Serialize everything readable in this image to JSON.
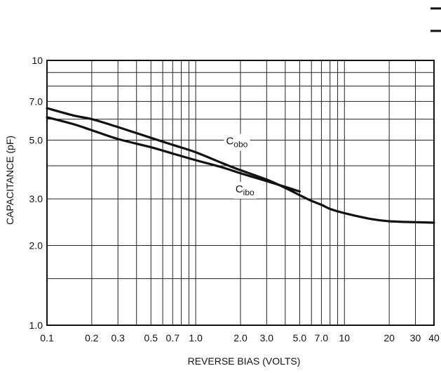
{
  "chart_data": {
    "type": "line",
    "title": "",
    "xlabel": "REVERSE BIAS (VOLTS)",
    "ylabel": "CAPACITANCE (pF)",
    "x_scale": "log",
    "y_scale": "log",
    "xlim": [
      0.1,
      40
    ],
    "ylim": [
      1.0,
      10
    ],
    "grid": true,
    "x_ticks": [
      0.1,
      0.2,
      0.3,
      0.5,
      0.7,
      1.0,
      2.0,
      3.0,
      5.0,
      7.0,
      10,
      20,
      30,
      40
    ],
    "x_tick_labels": [
      "0.1",
      "0.2",
      "0.3",
      "0.5",
      "0.7",
      "1.0",
      "2.0",
      "3.0",
      "5.0",
      "7.0",
      "10",
      "20",
      "30",
      "40"
    ],
    "y_ticks": [
      1.0,
      2.0,
      3.0,
      5.0,
      7.0,
      10
    ],
    "y_tick_labels": [
      "1.0",
      "2.0",
      "3.0",
      "5.0",
      "7.0",
      "10"
    ],
    "x_grid": [
      0.1,
      0.2,
      0.3,
      0.4,
      0.5,
      0.6,
      0.7,
      0.8,
      0.9,
      1,
      2,
      3,
      4,
      5,
      6,
      7,
      8,
      9,
      10,
      20,
      30,
      40
    ],
    "y_grid": [
      1,
      1.5,
      2,
      3,
      4,
      5,
      6,
      7,
      8,
      9,
      10
    ],
    "series": [
      {
        "name": "C_obo",
        "label_main": "C",
        "label_sub": "obo",
        "x": [
          0.1,
          0.15,
          0.2,
          0.3,
          0.5,
          0.7,
          1.0,
          1.5,
          2.0,
          3.0,
          4.0,
          5.0,
          6.0,
          7.0,
          8.0,
          10,
          15,
          20,
          30,
          40
        ],
        "y": [
          6.6,
          6.2,
          6.0,
          5.6,
          5.1,
          4.8,
          4.5,
          4.1,
          3.85,
          3.55,
          3.3,
          3.1,
          2.95,
          2.85,
          2.75,
          2.65,
          2.52,
          2.47,
          2.45,
          2.44
        ]
      },
      {
        "name": "C_ibo",
        "label_main": "C",
        "label_sub": "ibo",
        "x": [
          0.1,
          0.15,
          0.2,
          0.3,
          0.5,
          0.7,
          1.0,
          1.5,
          2.0,
          3.0,
          4.0,
          5.0
        ],
        "y": [
          6.1,
          5.75,
          5.45,
          5.05,
          4.7,
          4.45,
          4.2,
          3.95,
          3.75,
          3.5,
          3.33,
          3.2
        ]
      }
    ]
  }
}
